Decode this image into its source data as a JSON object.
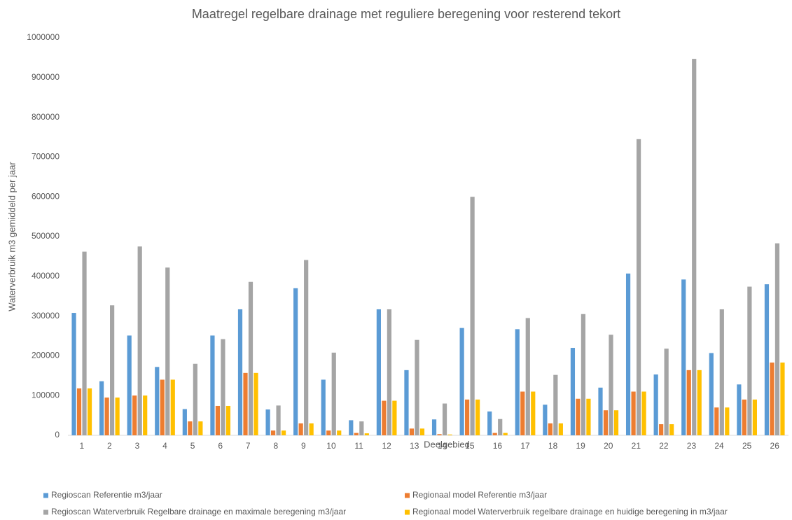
{
  "chart_data": {
    "type": "bar",
    "title": "Maatregel regelbare drainage met reguliere beregening voor resterend tekort",
    "x_label": "Deelgebied",
    "y_label": "Waterverbruik m3  gemiddeld per jaar",
    "categories": [
      "1",
      "2",
      "3",
      "4",
      "5",
      "6",
      "7",
      "8",
      "9",
      "10",
      "11",
      "12",
      "13",
      "14",
      "15",
      "16",
      "17",
      "18",
      "19",
      "20",
      "21",
      "22",
      "23",
      "24",
      "25",
      "26"
    ],
    "series": [
      {
        "name": "Regioscan  Referentie  m3/jaar",
        "color": "#5b9bd5",
        "values": [
          308000,
          136000,
          251000,
          172000,
          66000,
          251000,
          317000,
          65000,
          370000,
          140000,
          38000,
          317000,
          164000,
          40000,
          270000,
          60000,
          267000,
          77000,
          220000,
          120000,
          407000,
          153000,
          392000,
          207000,
          128000,
          380000
        ]
      },
      {
        "name": "Regionaal model Referentie m3/jaar",
        "color": "#ed7d31",
        "values": [
          118000,
          95000,
          100000,
          140000,
          35000,
          74000,
          157000,
          12000,
          30000,
          12000,
          6000,
          87000,
          17000,
          3000,
          90000,
          6000,
          110000,
          30000,
          92000,
          63000,
          110000,
          28000,
          164000,
          70000,
          90000,
          183000
        ]
      },
      {
        "name": "Regioscan  Waterverbruik Regelbare drainage en maximale beregening m3/jaar",
        "color": "#a5a5a5",
        "values": [
          462000,
          327000,
          475000,
          422000,
          180000,
          242000,
          386000,
          75000,
          441000,
          208000,
          35000,
          317000,
          240000,
          80000,
          600000,
          41000,
          295000,
          152000,
          305000,
          253000,
          745000,
          218000,
          947000,
          317000,
          374000,
          483000
        ]
      },
      {
        "name": "Regionaal model Waterverbruik regelbare drainage en huidige beregening in m3/jaar",
        "color": "#ffc000",
        "values": [
          118000,
          95000,
          100000,
          140000,
          35000,
          74000,
          157000,
          12000,
          30000,
          12000,
          5000,
          87000,
          17000,
          2000,
          90000,
          6000,
          110000,
          30000,
          92000,
          63000,
          110000,
          28000,
          164000,
          70000,
          90000,
          183000
        ]
      }
    ],
    "ylim": [
      0,
      1000000
    ],
    "yticks": [
      0,
      100000,
      200000,
      300000,
      400000,
      500000,
      600000,
      700000,
      800000,
      900000,
      1000000
    ],
    "grid": false,
    "legend": "bottom"
  }
}
